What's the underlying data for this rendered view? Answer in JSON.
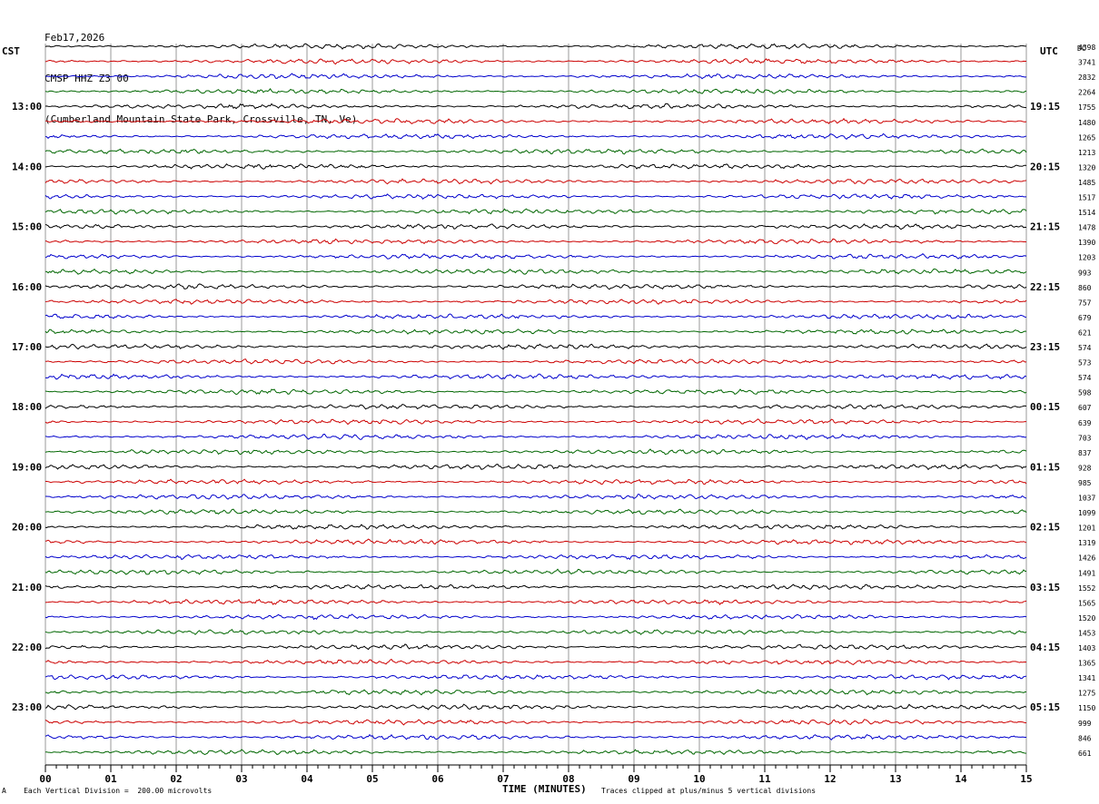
{
  "header": {
    "date": "Feb17,2026",
    "station": "CMSP HHZ Z3 00",
    "location": "(Cumberland Mountain State Park, Crossville, TN, Ve)"
  },
  "left_axis_title": "CST",
  "right_axis_title": "UTC",
  "dc_title": "DC",
  "footer": {
    "division_note": "Each Vertical Division =  200.00 microvolts",
    "xlabel": "TIME (MINUTES)",
    "clip_note": "Traces clipped at plus/minus 5 vertical divisions",
    "corner_mark": "A"
  },
  "colors": {
    "trace_cycle": [
      "#000000",
      "#cc0000",
      "#0000cc",
      "#006600"
    ],
    "grid": "#808080"
  },
  "chart_data": {
    "type": "line",
    "subtype": "helicorder",
    "x": {
      "label": "TIME (MINUTES)",
      "range": [
        0,
        15
      ],
      "ticks": [
        "00",
        "01",
        "02",
        "03",
        "04",
        "05",
        "06",
        "07",
        "08",
        "09",
        "10",
        "11",
        "12",
        "13",
        "14",
        "15"
      ]
    },
    "rows_per_hour": 4,
    "left_hour_labels": [
      {
        "row": 4,
        "label": "13:00"
      },
      {
        "row": 8,
        "label": "14:00"
      },
      {
        "row": 12,
        "label": "15:00"
      },
      {
        "row": 16,
        "label": "16:00"
      },
      {
        "row": 20,
        "label": "17:00"
      },
      {
        "row": 24,
        "label": "18:00"
      },
      {
        "row": 28,
        "label": "19:00"
      },
      {
        "row": 32,
        "label": "20:00"
      },
      {
        "row": 36,
        "label": "21:00"
      },
      {
        "row": 40,
        "label": "22:00"
      },
      {
        "row": 44,
        "label": "23:00"
      }
    ],
    "right_hour_labels": [
      {
        "row": 4,
        "label": "19:15"
      },
      {
        "row": 8,
        "label": "20:15"
      },
      {
        "row": 12,
        "label": "21:15"
      },
      {
        "row": 16,
        "label": "22:15"
      },
      {
        "row": 20,
        "label": "23:15"
      },
      {
        "row": 24,
        "label": "00:15"
      },
      {
        "row": 28,
        "label": "01:15"
      },
      {
        "row": 32,
        "label": "02:15"
      },
      {
        "row": 36,
        "label": "03:15"
      },
      {
        "row": 40,
        "label": "04:15"
      },
      {
        "row": 44,
        "label": "05:15"
      }
    ],
    "dc_offsets": [
      "4398",
      "3741",
      "2832",
      "2264",
      "1755",
      "1480",
      "1265",
      "1213",
      "1320",
      "1485",
      "1517",
      "1514",
      "1478",
      "1390",
      "1203",
      "993",
      "860",
      "757",
      "679",
      "621",
      "574",
      "573",
      "574",
      "598",
      "607",
      "639",
      "703",
      "837",
      "928",
      "985",
      "1037",
      "1099",
      "1201",
      "1319",
      "1426",
      "1491",
      "1552",
      "1565",
      "1520",
      "1453",
      "1403",
      "1365",
      "1341",
      "1275",
      "1150",
      "999",
      "846",
      "661"
    ],
    "amplitude_divisions_clip": 5
  }
}
